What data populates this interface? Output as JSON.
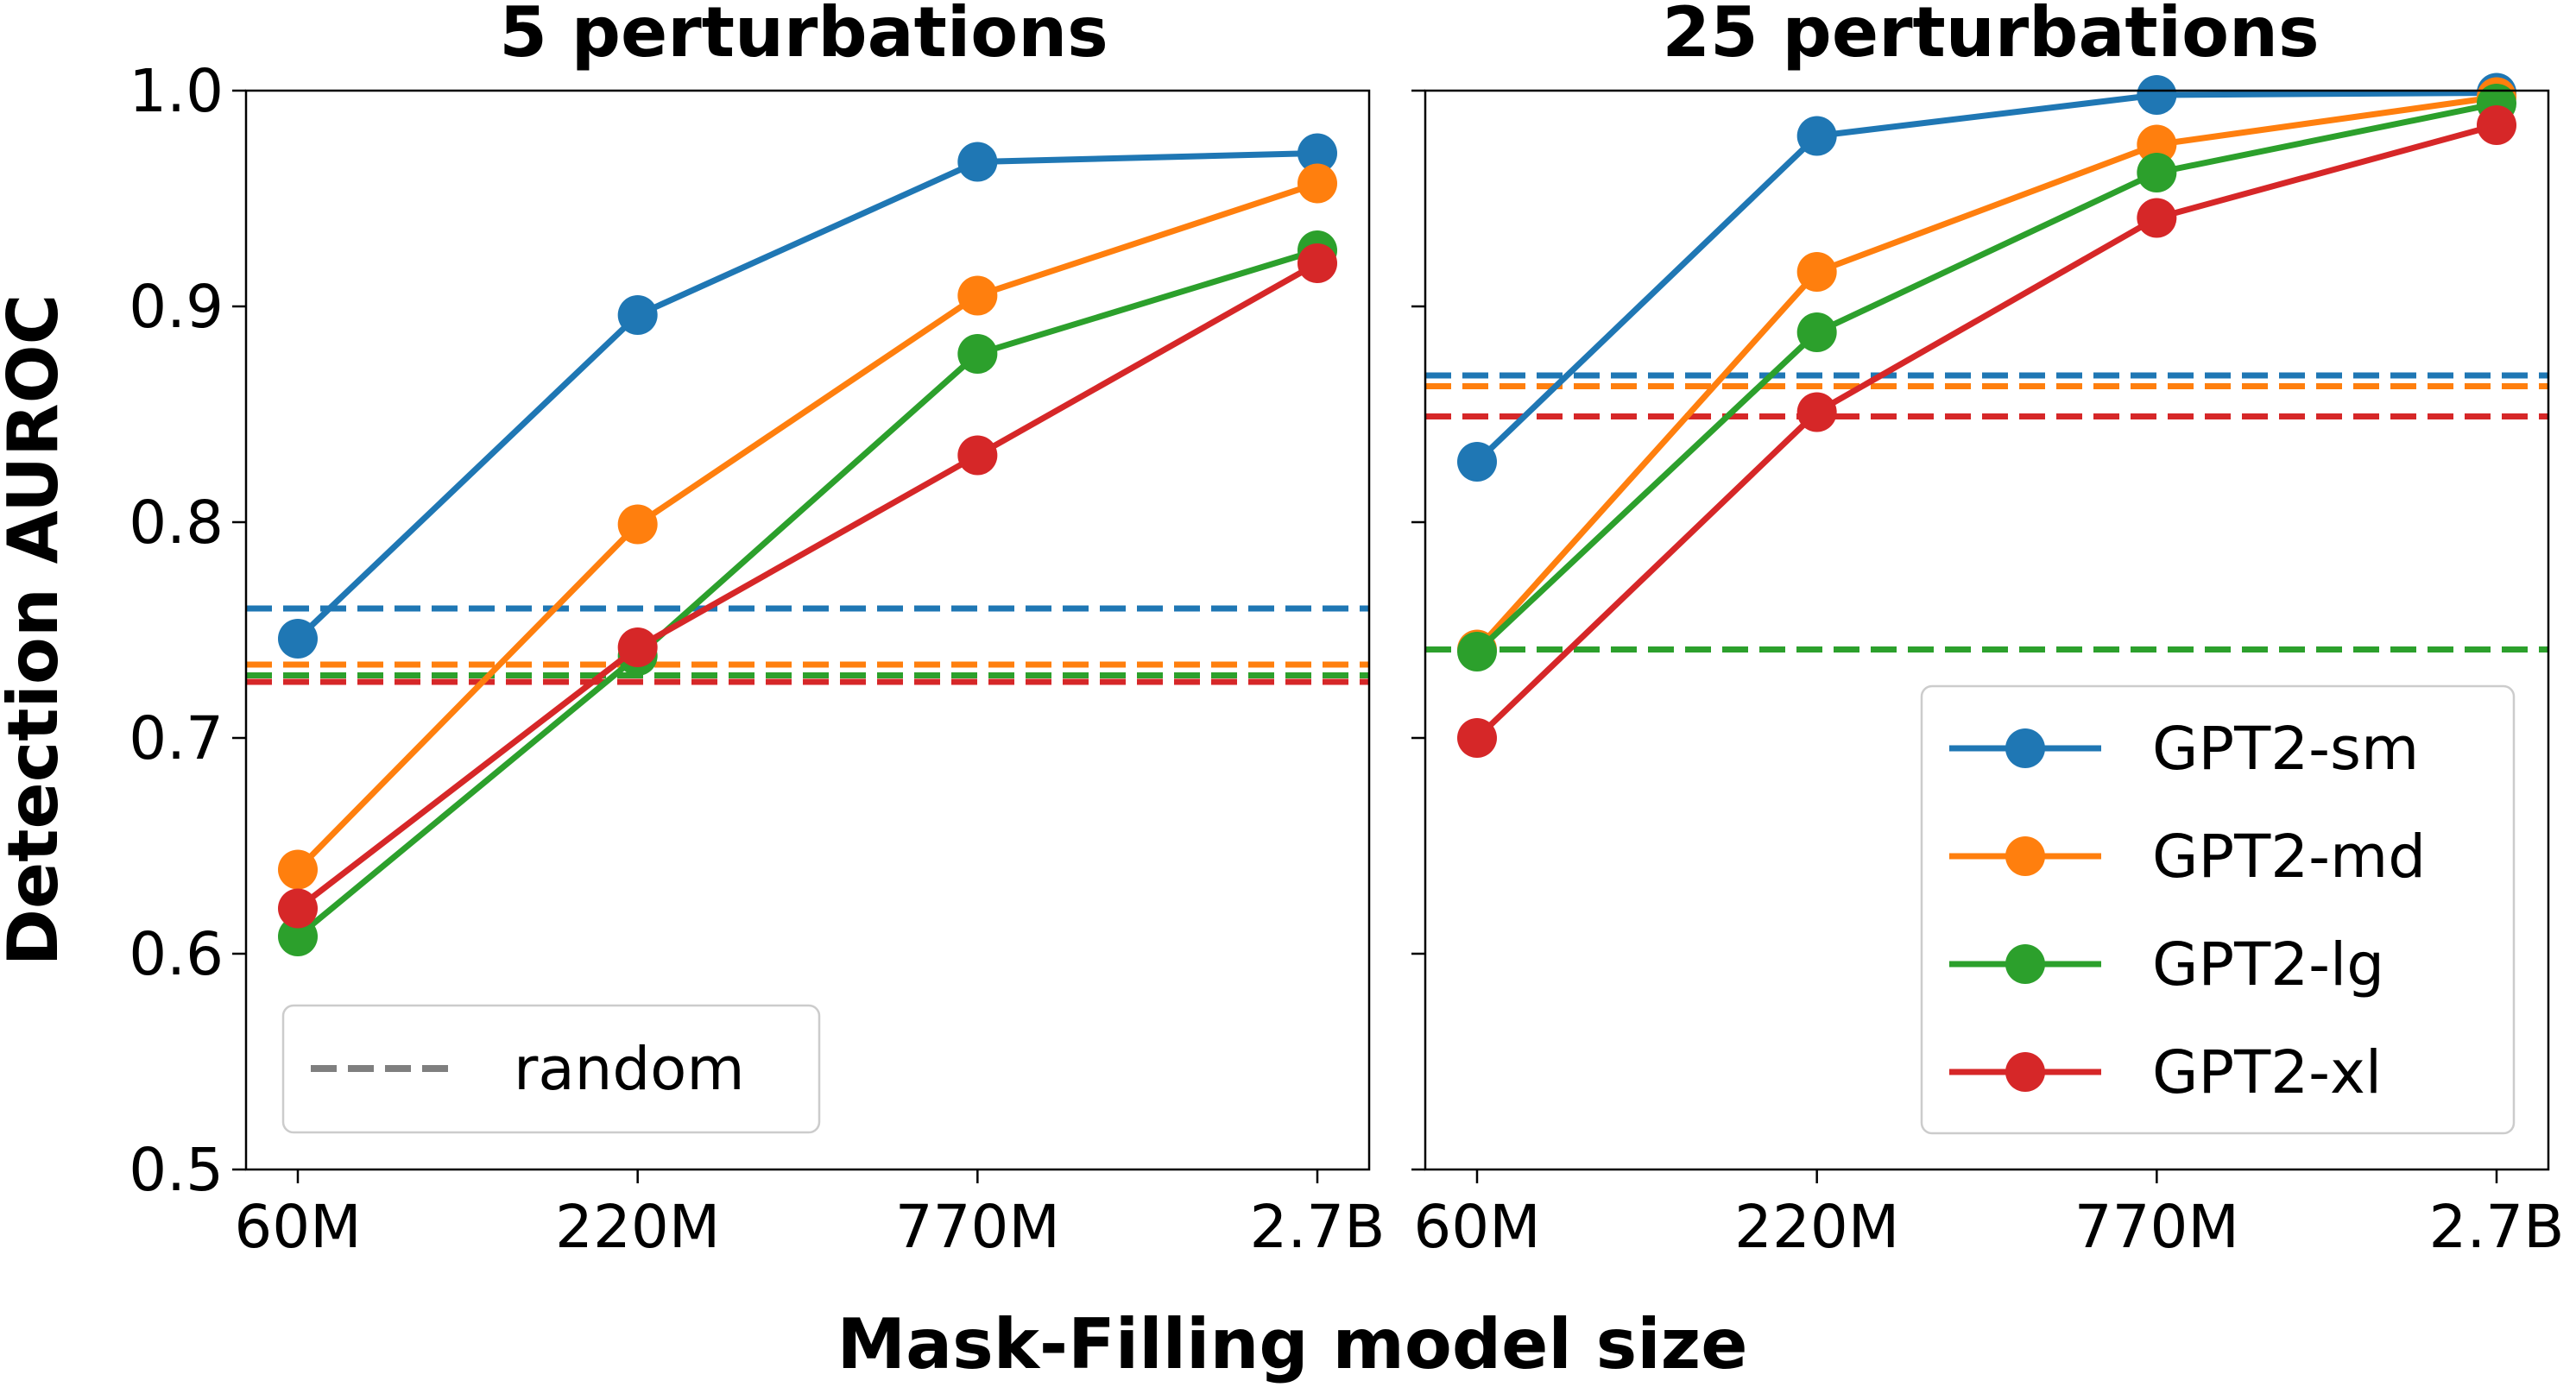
{
  "colors": {
    "GPT2-sm": "#1f77b4",
    "GPT2-md": "#ff7f0e",
    "GPT2-lg": "#2ca02c",
    "GPT2-xl": "#d62728",
    "random": "#7f7f7f"
  },
  "shared": {
    "ylabel": "Detection AUROC",
    "xlabel": "Mask-Filling model size",
    "yticks": [
      "0.5",
      "0.6",
      "0.7",
      "0.8",
      "0.9",
      "1.0"
    ]
  },
  "chart_data": [
    {
      "type": "line",
      "title": "5 perturbations",
      "categories": [
        "60M",
        "220M",
        "770M",
        "2.7B"
      ],
      "ylim": [
        0.5,
        1.0
      ],
      "grid": false,
      "legend": {
        "placement": "lower-left",
        "entries": [
          "random"
        ],
        "style": "dashed"
      },
      "series": [
        {
          "name": "GPT2-sm",
          "values": [
            0.746,
            0.896,
            0.967,
            0.971
          ],
          "random": 0.76
        },
        {
          "name": "GPT2-md",
          "values": [
            0.639,
            0.799,
            0.905,
            0.957
          ],
          "random": 0.734
        },
        {
          "name": "GPT2-lg",
          "values": [
            0.608,
            0.738,
            0.878,
            0.926
          ],
          "random": 0.729
        },
        {
          "name": "GPT2-xl",
          "values": [
            0.621,
            0.742,
            0.831,
            0.92
          ],
          "random": 0.726
        }
      ]
    },
    {
      "type": "line",
      "title": "25 perturbations",
      "categories": [
        "60M",
        "220M",
        "770M",
        "2.7B"
      ],
      "ylim": [
        0.5,
        1.0
      ],
      "grid": false,
      "legend": {
        "placement": "lower-right",
        "entries": [
          "GPT2-sm",
          "GPT2-md",
          "GPT2-lg",
          "GPT2-xl"
        ]
      },
      "series": [
        {
          "name": "GPT2-sm",
          "values": [
            0.828,
            0.979,
            0.998,
            0.999
          ],
          "random": 0.868
        },
        {
          "name": "GPT2-md",
          "values": [
            0.741,
            0.916,
            0.975,
            0.997
          ],
          "random": 0.863
        },
        {
          "name": "GPT2-lg",
          "values": [
            0.74,
            0.888,
            0.962,
            0.994
          ],
          "random": 0.741
        },
        {
          "name": "GPT2-xl",
          "values": [
            0.7,
            0.851,
            0.941,
            0.984
          ],
          "random": 0.849
        }
      ]
    }
  ]
}
